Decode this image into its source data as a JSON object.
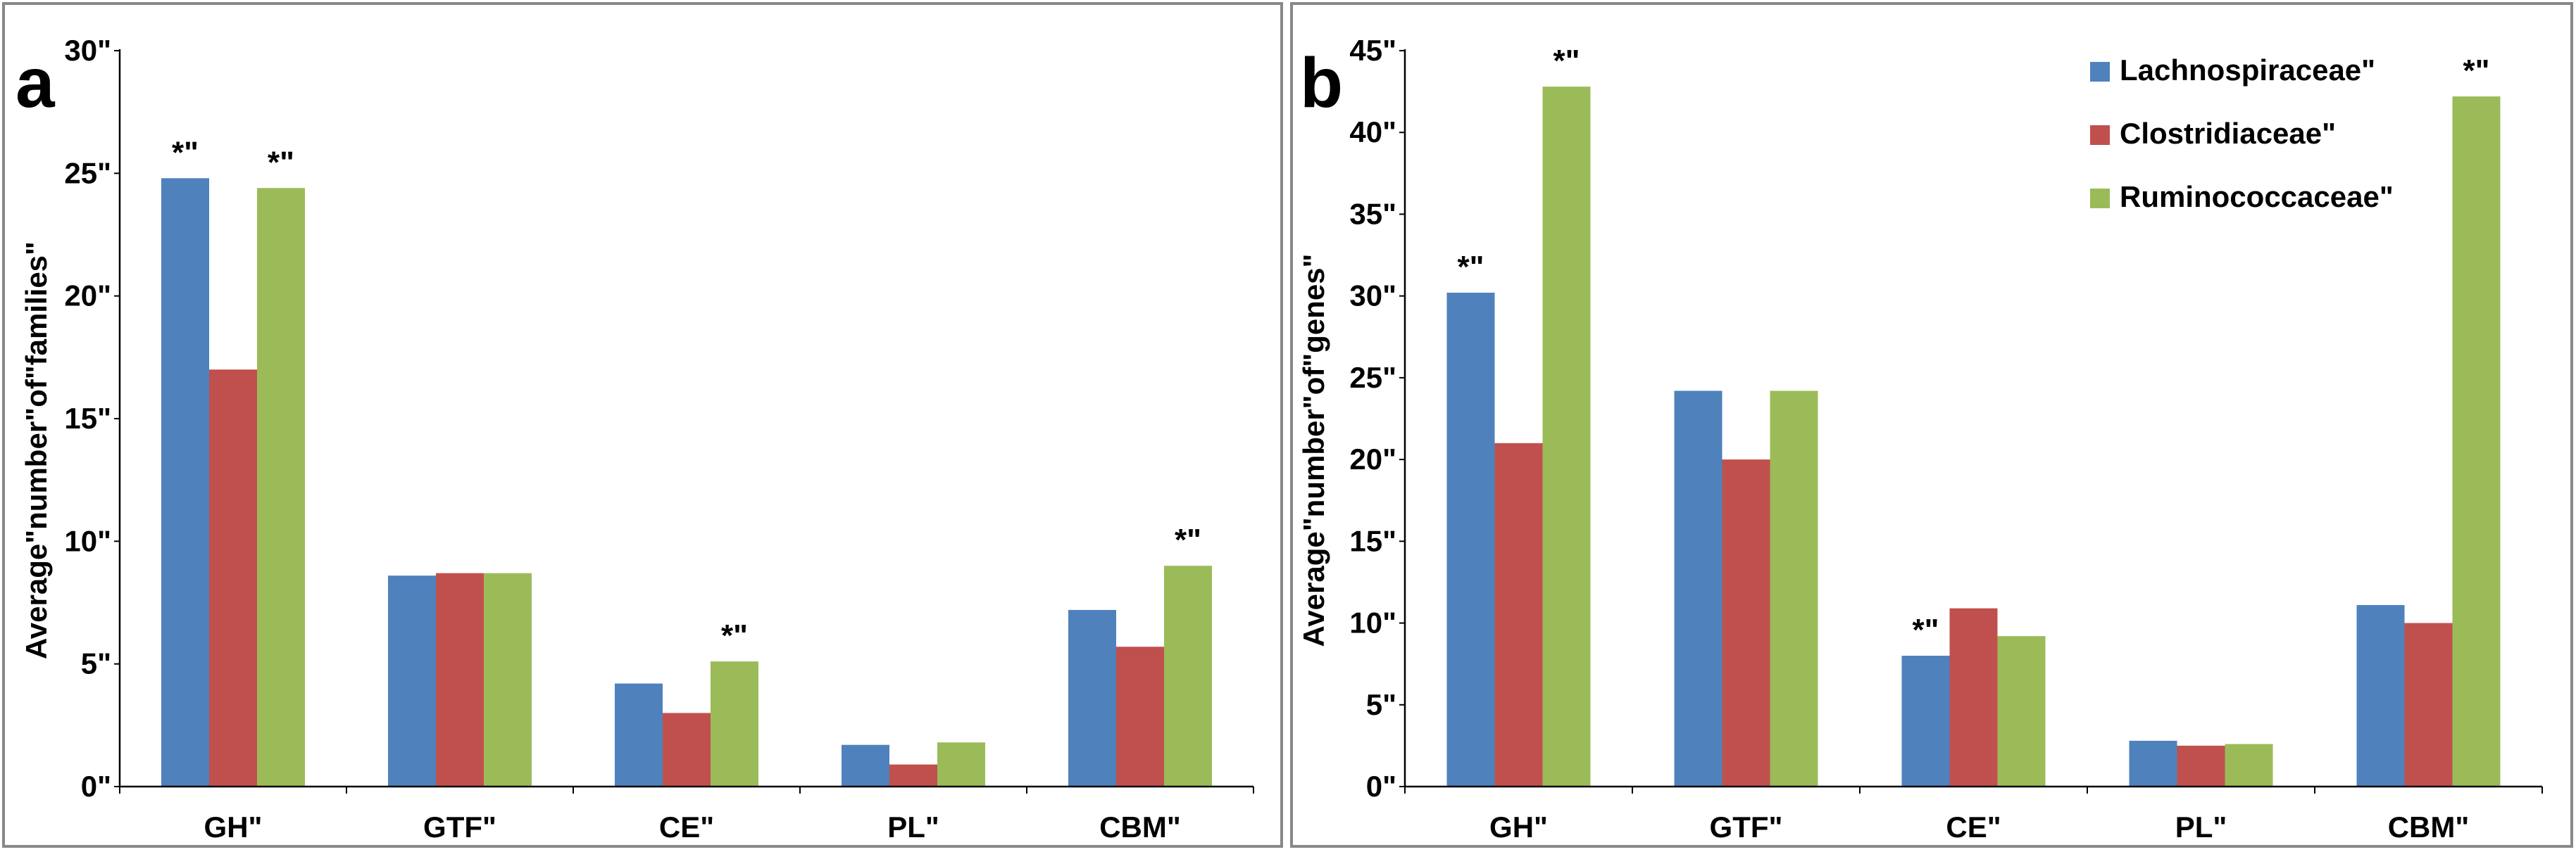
{
  "chart_data": [
    {
      "type": "bar",
      "panel_label": "a",
      "title": "",
      "xlabel": "",
      "ylabel": "Average\"number\"of\"families\"",
      "categories": [
        "GH\"",
        "GTF\"",
        "CE\"",
        "PL\"",
        "CBM\""
      ],
      "yticks": [
        0,
        5,
        10,
        15,
        20,
        25,
        30
      ],
      "ytick_labels": [
        "0\"",
        "5\"",
        "10\"",
        "15\"",
        "20\"",
        "25\"",
        "30\""
      ],
      "ylim": [
        0,
        30
      ],
      "grid": false,
      "series": [
        {
          "name": "Lachnospiraceae\"",
          "color": "#4f81bd",
          "values": [
            24.8,
            8.6,
            4.2,
            1.7,
            7.2
          ]
        },
        {
          "name": "Clostridiaceae\"",
          "color": "#c0504d",
          "values": [
            17.0,
            8.7,
            3.0,
            0.9,
            5.7
          ]
        },
        {
          "name": "Ruminococcaceae\"",
          "color": "#9bbb59",
          "values": [
            24.4,
            8.7,
            5.1,
            1.8,
            9.0
          ]
        }
      ],
      "annotations": [
        {
          "text": "*\"",
          "category": 0,
          "series": 0
        },
        {
          "text": "*\"",
          "category": 0,
          "series": 2
        },
        {
          "text": "*\"",
          "category": 2,
          "series": 2
        },
        {
          "text": "*\"",
          "category": 4,
          "series": 2
        }
      ]
    },
    {
      "type": "bar",
      "panel_label": "b",
      "title": "",
      "xlabel": "",
      "ylabel": "Average\"number\"of\"genes\"",
      "categories": [
        "GH\"",
        "GTF\"",
        "CE\"",
        "PL\"",
        "CBM\""
      ],
      "yticks": [
        0,
        5,
        10,
        15,
        20,
        25,
        30,
        35,
        40,
        45
      ],
      "ytick_labels": [
        "0\"",
        "5\"",
        "10\"",
        "15\"",
        "20\"",
        "25\"",
        "30\"",
        "35\"",
        "40\"",
        "45\""
      ],
      "ylim": [
        0,
        45
      ],
      "grid": false,
      "legend_position": "top-right",
      "series": [
        {
          "name": "Lachnospiraceae\"",
          "color": "#4f81bd",
          "values": [
            30.2,
            24.2,
            8.0,
            2.8,
            11.1
          ]
        },
        {
          "name": "Clostridiaceae\"",
          "color": "#c0504d",
          "values": [
            21.0,
            20.0,
            10.9,
            2.5,
            10.0
          ]
        },
        {
          "name": "Ruminococcaceae\"",
          "color": "#9bbb59",
          "values": [
            42.8,
            24.2,
            9.2,
            2.6,
            42.2
          ]
        }
      ],
      "annotations": [
        {
          "text": "*\"",
          "category": 0,
          "series": 0
        },
        {
          "text": "*\"",
          "category": 0,
          "series": 2
        },
        {
          "text": "*\"",
          "category": 2,
          "series": 0
        },
        {
          "text": "*\"",
          "category": 4,
          "series": 2
        }
      ]
    }
  ]
}
